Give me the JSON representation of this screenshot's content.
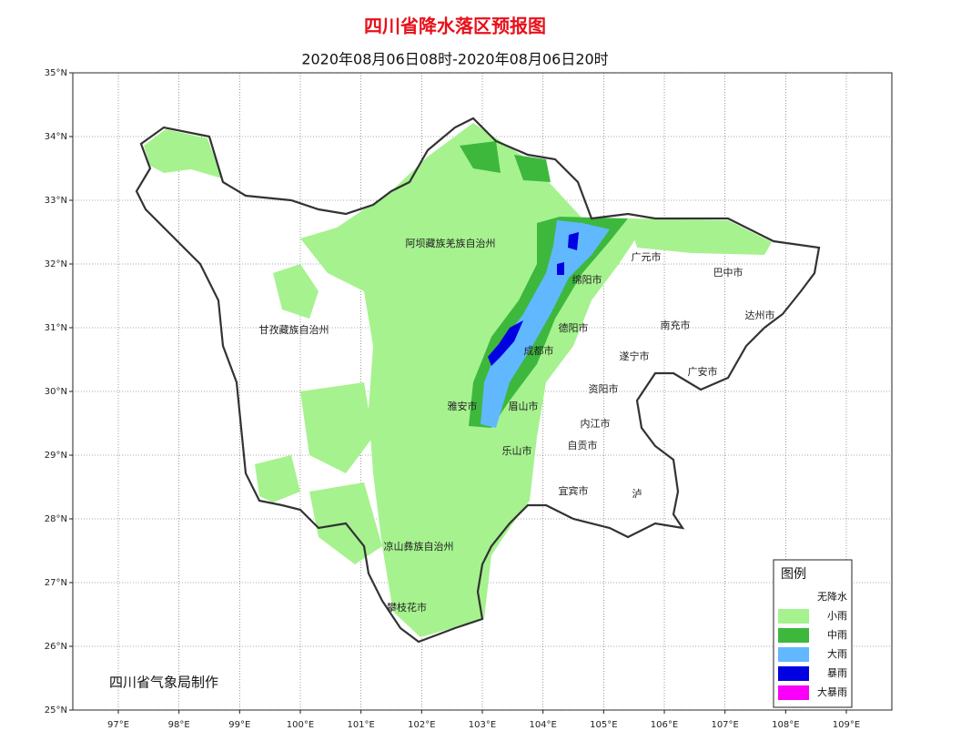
{
  "map": {
    "title": "四川省降水落区预报图",
    "subtitle": "2020年08月06日08时-2020年08月06日20时",
    "xlim": [
      96.25,
      109.75
    ],
    "ylim": [
      25,
      35
    ],
    "xticks": [
      {
        "value": 97,
        "label": "97°E"
      },
      {
        "value": 98,
        "label": "98°E"
      },
      {
        "value": 99,
        "label": "99°E"
      },
      {
        "value": 100,
        "label": "100°E"
      },
      {
        "value": 101,
        "label": "101°E"
      },
      {
        "value": 102,
        "label": "102°E"
      },
      {
        "value": 103,
        "label": "103°E"
      },
      {
        "value": 104,
        "label": "104°E"
      },
      {
        "value": 105,
        "label": "105°E"
      },
      {
        "value": 106,
        "label": "106°E"
      },
      {
        "value": 107,
        "label": "107°E"
      },
      {
        "value": 108,
        "label": "108°E"
      },
      {
        "value": 109,
        "label": "109°E"
      }
    ],
    "yticks": [
      {
        "value": 25,
        "label": "25°N"
      },
      {
        "value": 26,
        "label": "26°N"
      },
      {
        "value": 27,
        "label": "27°N"
      },
      {
        "value": 28,
        "label": "28°N"
      },
      {
        "value": 29,
        "label": "29°N"
      },
      {
        "value": 30,
        "label": "30°N"
      },
      {
        "value": 31,
        "label": "31°N"
      },
      {
        "value": 32,
        "label": "32°N"
      },
      {
        "value": 33,
        "label": "33°N"
      },
      {
        "value": 34,
        "label": "34°N"
      },
      {
        "value": 35,
        "label": "35°N"
      }
    ],
    "grid": true,
    "regions": [
      "阿坝藏族羌族自治州",
      "甘孜藏族自治州",
      "广元市",
      "巴中市",
      "绵阳市",
      "达州市",
      "南充市",
      "德阳市",
      "成都市",
      "遂宁市",
      "广安市",
      "资阳市",
      "雅安市",
      "眉山市",
      "内江市",
      "自贡市",
      "乐山市",
      "宜宾市",
      "泸",
      "凉山彝族自治州",
      "攀枝花市"
    ],
    "legend": {
      "title": "图例",
      "items": [
        {
          "label": "无降水",
          "color": "#ffffff"
        },
        {
          "label": "小雨",
          "color": "#a6f28f"
        },
        {
          "label": "中雨",
          "color": "#3db83d"
        },
        {
          "label": "大雨",
          "color": "#61b8ff"
        },
        {
          "label": "暴雨",
          "color": "#0000e1"
        },
        {
          "label": "大暴雨",
          "color": "#fa00fa"
        }
      ]
    },
    "credit": "四川省气象局制作"
  }
}
